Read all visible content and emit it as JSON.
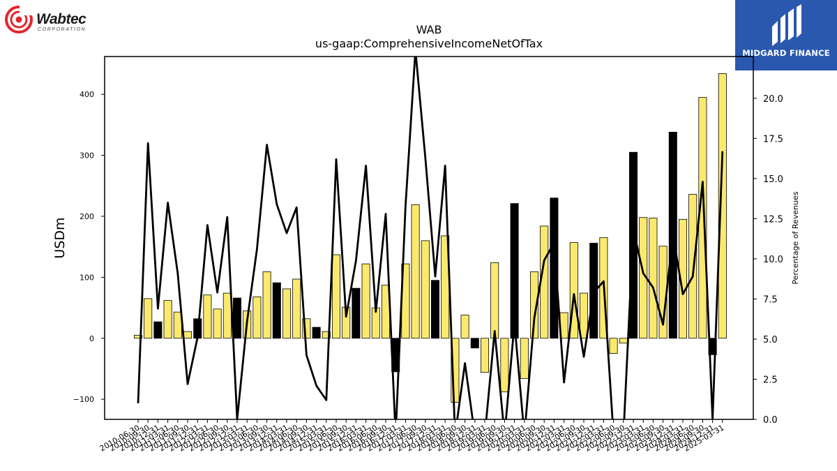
{
  "branding": {
    "left_logo_word": "Wabtec",
    "left_logo_sub": "CORPORATION",
    "right_logo_text": "MIDGARD FINANCE"
  },
  "chart_data": {
    "type": "bar",
    "title": "WAB",
    "subtitle": "us-gaap:ComprehensiveIncomeNetOfTax",
    "ylabel": "USDm",
    "y2label": "Percentage of Revenues",
    "ylim": [
      -133,
      462
    ],
    "y2lim": [
      0,
      22.6
    ],
    "yticks": [
      -100,
      0,
      100,
      200,
      300,
      400
    ],
    "y2ticks": [
      0.0,
      2.5,
      5.0,
      7.5,
      10.0,
      12.5,
      15.0,
      17.5,
      20.0
    ],
    "x": [
      "2010-06-30",
      "2010-09-30",
      "2010-12-31",
      "2011-03-31",
      "2011-06-30",
      "2011-09-30",
      "2011-12-31",
      "2012-03-31",
      "2012-06-30",
      "2012-09-30",
      "2012-12-31",
      "2013-03-31",
      "2013-06-30",
      "2013-09-30",
      "2013-12-31",
      "2014-03-31",
      "2014-06-30",
      "2014-09-30",
      "2014-12-31",
      "2015-03-31",
      "2015-06-30",
      "2015-09-30",
      "2015-12-31",
      "2016-03-31",
      "2016-06-30",
      "2016-09-30",
      "2016-12-31",
      "2017-03-31",
      "2017-06-30",
      "2017-09-30",
      "2017-12-31",
      "2018-03-31",
      "2018-06-30",
      "2018-09-30",
      "2018-12-31",
      "2019-03-31",
      "2019-06-30",
      "2019-09-30",
      "2019-12-31",
      "2020-03-31",
      "2020-06-30",
      "2020-09-30",
      "2020-12-31",
      "2021-03-31",
      "2021-06-30",
      "2021-09-30",
      "2021-12-31",
      "2022-03-31",
      "2022-06-30",
      "2022-09-30",
      "2022-12-31",
      "2023-03-31",
      "2023-06-30",
      "2023-09-30",
      "2023-12-31",
      "2024-03-31",
      "2024-06-30",
      "2024-09-30",
      "2024-12-31",
      "2025-03-31"
    ],
    "series": [
      {
        "type": "bar",
        "values": [
          5,
          65,
          27,
          62,
          43,
          11,
          32,
          71,
          48,
          74,
          66,
          45,
          68,
          109,
          91,
          81,
          97,
          32,
          18,
          11,
          137,
          51,
          82,
          122,
          50,
          87,
          -55,
          122,
          219,
          160,
          95,
          168,
          -105,
          38,
          -16,
          -56,
          124,
          -88,
          221,
          -66,
          109,
          184,
          230,
          42,
          157,
          74,
          156,
          165,
          -25,
          -8,
          305,
          198,
          197,
          151,
          338,
          195,
          236,
          395,
          -27,
          434
        ],
        "colors": [
          "y",
          "y",
          "k",
          "y",
          "y",
          "y",
          "k",
          "y",
          "y",
          "y",
          "k",
          "y",
          "y",
          "y",
          "k",
          "y",
          "y",
          "y",
          "k",
          "y",
          "y",
          "y",
          "k",
          "y",
          "y",
          "y",
          "k",
          "y",
          "y",
          "y",
          "k",
          "y",
          "y",
          "y",
          "k",
          "y",
          "y",
          "y",
          "k",
          "y",
          "y",
          "y",
          "k",
          "y",
          "y",
          "y",
          "k",
          "y",
          "y",
          "y",
          "k",
          "y",
          "y",
          "y",
          "k",
          "y",
          "y",
          "y",
          "k",
          "y"
        ]
      },
      {
        "type": "line",
        "axis": "right",
        "values": [
          1.0,
          17.2,
          6.9,
          13.5,
          9.1,
          2.2,
          5.1,
          12.1,
          7.9,
          12.6,
          0.0,
          6.1,
          10.6,
          17.1,
          13.4,
          11.6,
          13.2,
          4.0,
          2.1,
          1.2,
          16.2,
          6.4,
          9.9,
          15.8,
          6.7,
          12.8,
          -1.0,
          13.3,
          23.0,
          16.3,
          8.9,
          15.8,
          -1.0,
          3.5,
          -1.0,
          -1.0,
          5.5,
          -1.0,
          6.0,
          -1.0,
          6.3,
          9.9,
          11.0,
          2.3,
          7.8,
          3.9,
          7.9,
          8.6,
          -1.0,
          -1.0,
          11.8,
          9.1,
          8.2,
          5.9,
          11.5,
          7.8,
          8.9,
          14.8,
          0.0,
          16.7
        ]
      }
    ],
    "colors": {
      "y": "#fbe96e",
      "k": "#000000",
      "line": "#000000"
    },
    "grid": false,
    "legend": "none"
  }
}
